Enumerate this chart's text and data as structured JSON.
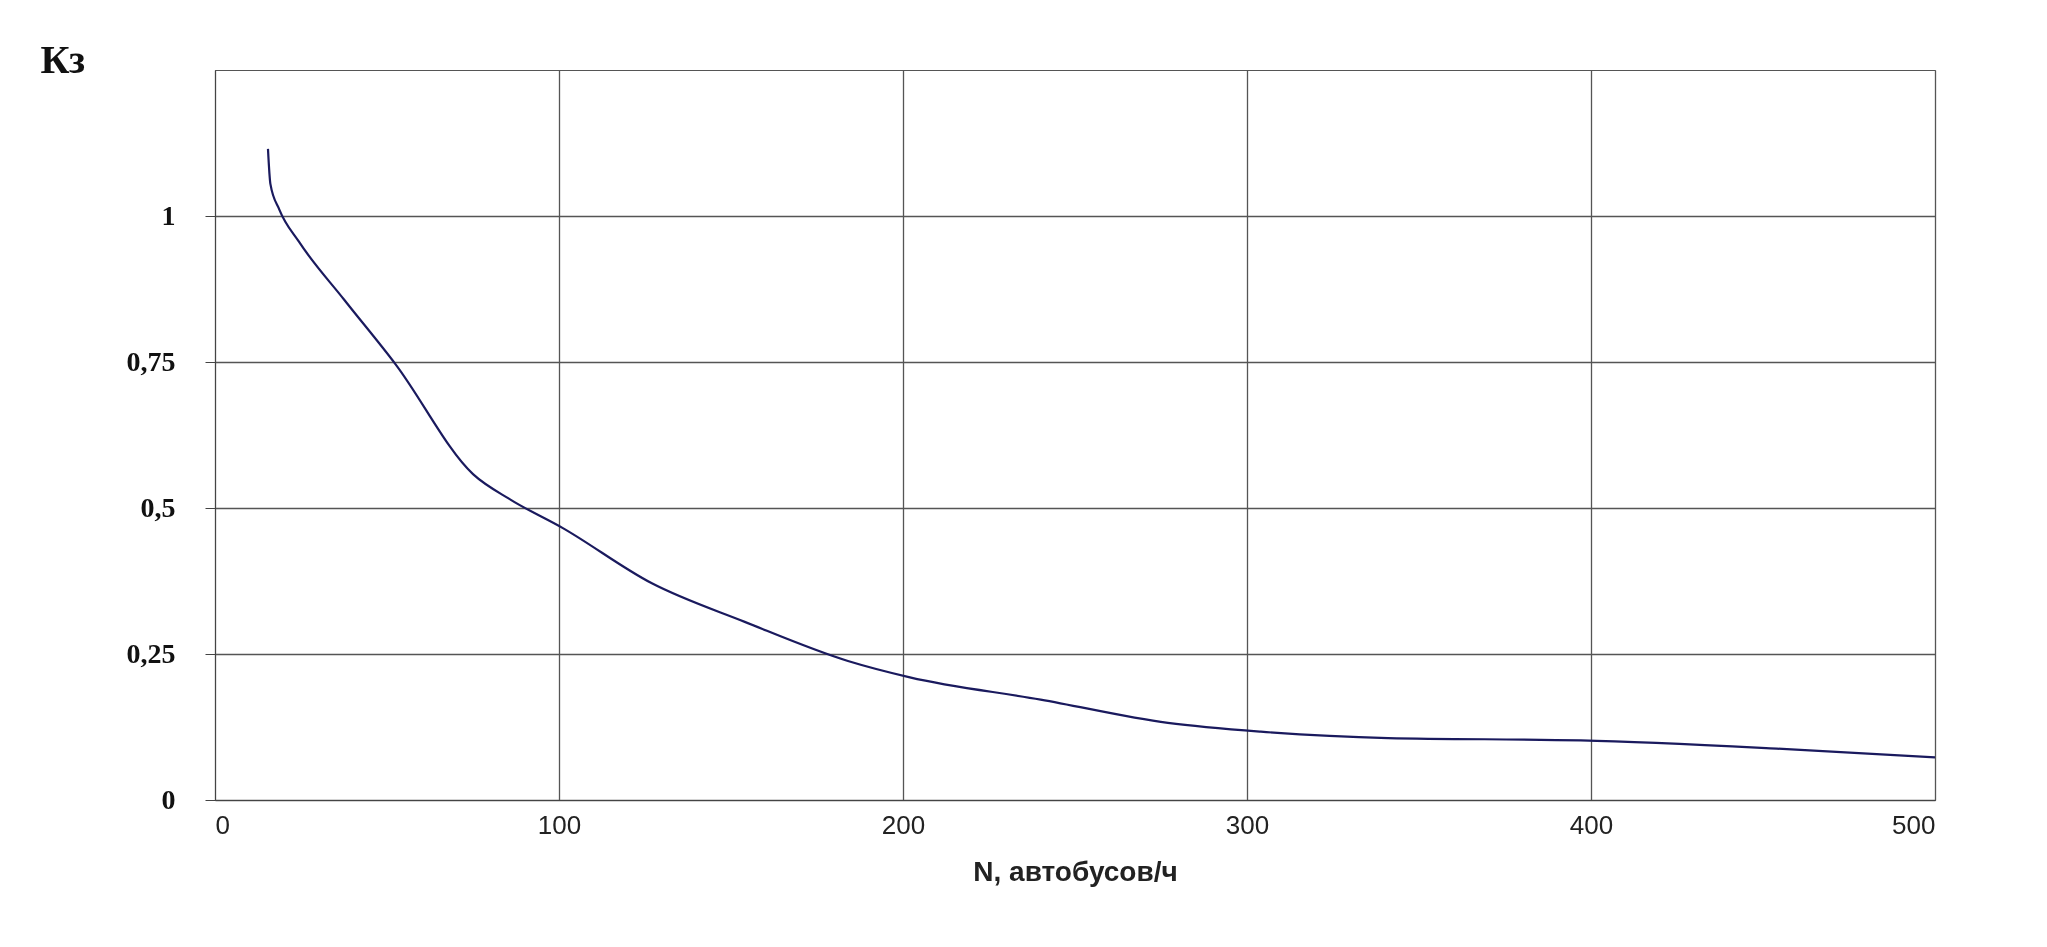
{
  "chart_data": {
    "type": "line",
    "xlabel": "N, автобусов/ч",
    "ylabel": "Кз",
    "x": [
      15.4,
      16.1,
      18.7,
      24.4,
      37.5,
      52.5,
      75,
      86,
      101,
      127,
      154,
      184,
      202,
      240,
      277,
      304,
      341,
      397,
      454,
      500
    ],
    "series": [
      {
        "color": "#1a1a5e",
        "values": [
          1.115,
          1.055,
          1.011,
          0.956,
          0.857,
          0.746,
          0.558,
          0.514,
          0.466,
          0.371,
          0.305,
          0.238,
          0.21,
          0.172,
          0.132,
          0.117,
          0.106,
          0.102,
          0.088,
          0.073
        ]
      }
    ],
    "xlim": [
      0,
      500
    ],
    "xticks": [
      0,
      100,
      200,
      300,
      400,
      500
    ],
    "ylim": [
      0,
      1.25
    ],
    "yticks": [
      0,
      {
        "value": 0.25,
        "label": "0,25"
      },
      {
        "value": 0.5,
        "label": "0,5"
      },
      {
        "value": 0.75,
        "label": "0,75"
      },
      1
    ],
    "grid": true,
    "marker": "none",
    "line_style": "solid"
  }
}
